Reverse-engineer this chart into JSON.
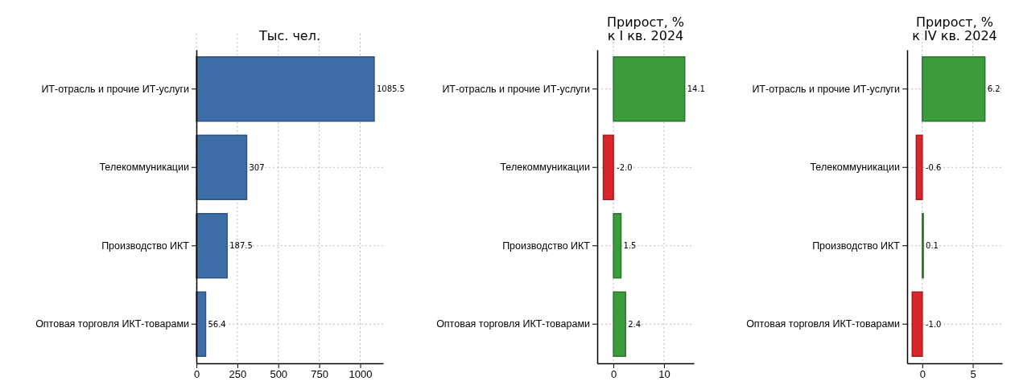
{
  "chart_data": [
    {
      "type": "bar",
      "orientation": "horizontal",
      "title": "Тыс. чел.",
      "categories": [
        "ИТ-отрасль и прочие ИТ-услуги",
        "Телекоммуникации",
        "Производство ИКТ",
        "Оптовая торговля ИКТ-товарами"
      ],
      "values": [
        1085.5,
        307,
        187.5,
        56.4
      ],
      "colors": [
        "#3d6ea8",
        "#3d6ea8",
        "#3d6ea8",
        "#3d6ea8"
      ],
      "value_labels": [
        "1085.5",
        "307",
        "187.5",
        "56.4"
      ],
      "xlim": [
        0,
        1140
      ],
      "xticks": [
        0,
        250,
        500,
        750,
        1000
      ],
      "grid": true
    },
    {
      "type": "bar",
      "orientation": "horizontal",
      "title": "Прирост, %\nк I кв. 2024",
      "categories": [
        "ИТ-отрасль и прочие ИТ-услуги",
        "Телекоммуникации",
        "Производство ИКТ",
        "Оптовая торговля ИКТ-товарами"
      ],
      "values": [
        14.1,
        -2.0,
        1.5,
        2.4
      ],
      "colors": [
        "#3c9c3c",
        "#d9262b",
        "#3c9c3c",
        "#3c9c3c"
      ],
      "value_labels": [
        "14.1",
        "-2.0",
        "1.5",
        "2.4"
      ],
      "xlim": [
        -3.2,
        15.9
      ],
      "xticks": [
        0,
        10
      ],
      "grid": true
    },
    {
      "type": "bar",
      "orientation": "horizontal",
      "title": "Прирост, %\nк IV кв. 2024",
      "categories": [
        "ИТ-отрасль и прочие ИТ-услуги",
        "Телекоммуникации",
        "Производство ИКТ",
        "Оптовая торговля ИКТ-товарами"
      ],
      "values": [
        6.2,
        -0.6,
        0.1,
        -1.0
      ],
      "colors": [
        "#3c9c3c",
        "#d9262b",
        "#3c9c3c",
        "#d9262b"
      ],
      "value_labels": [
        "6.2",
        "-0.6",
        "0.1",
        "-1.0"
      ],
      "xlim": [
        -1.5,
        7.9
      ],
      "xticks": [
        0,
        5
      ],
      "grid": true
    }
  ]
}
